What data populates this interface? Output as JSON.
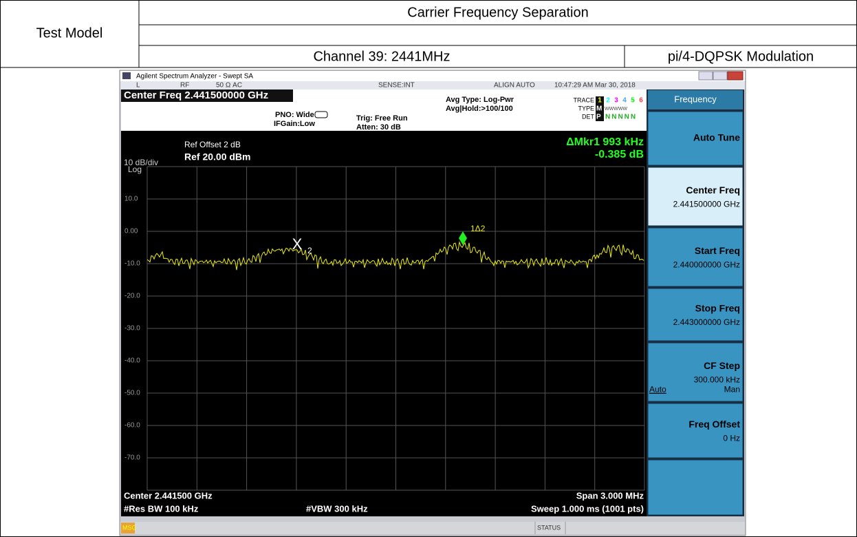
{
  "table": {
    "row_header": "Test Model",
    "title": "Carrier Frequency Separation",
    "channel": "Channel 39: 2441MHz",
    "modulation": "pi/4-DQPSK Modulation"
  },
  "analyzer": {
    "window_title": "Agilent Spectrum Analyzer - Swept SA",
    "status_bar": [
      "L",
      "RF",
      "50 Ω  AC",
      "SENSE:INT",
      "ALIGN AUTO",
      "10:47:29 AM Mar 30, 2018"
    ],
    "center_freq_header": "Center Freq 2.441500000 GHz",
    "pno": "PNO: Wide",
    "ifgain": "IFGain:Low",
    "trig": "Trig: Free Run",
    "atten": "Atten: 30 dB",
    "avg_type": "Avg Type: Log-Pwr",
    "avg_hold": "Avg|Hold:>100/100",
    "trace_label": "TRACE",
    "trace_numbers": [
      "1",
      "2",
      "3",
      "4",
      "5",
      "6"
    ],
    "type_label": "TYPE",
    "type_values": [
      "M",
      "WWWWW"
    ],
    "det_label": "DET",
    "det_values": [
      "P",
      "NNNNN"
    ],
    "ref_offset": "Ref Offset 2 dB",
    "ref_level": "Ref 20.00 dBm",
    "scale": "10 dB/div",
    "scale_type": "Log",
    "marker_readout": [
      "ΔMkr1 993 kHz",
      "-0.385 dB"
    ],
    "y_labels": [
      "10.0",
      "0.00",
      "-10.0",
      "-20.0",
      "-30.0",
      "-40.0",
      "-50.0",
      "-60.0",
      "-70.0"
    ],
    "marker_labels": {
      "x_marker": "X",
      "x_sub": "2",
      "delta": "1Δ2"
    },
    "footer": {
      "center": "Center 2.441500 GHz",
      "span": "Span 3.000 MHz",
      "rbw": "#Res BW 100 kHz",
      "vbw": "#VBW 300 kHz",
      "sweep": "Sweep  1.000 ms (1001 pts)"
    },
    "softkeys": {
      "menu": "Frequency",
      "items": [
        {
          "label": "Auto Tune"
        },
        {
          "label": "Center Freq",
          "value": "2.441500000 GHz"
        },
        {
          "label": "Start Freq",
          "value": "2.440000000 GHz"
        },
        {
          "label": "Stop Freq",
          "value": "2.443000000 GHz"
        },
        {
          "label": "CF Step",
          "value": "300.000 kHz",
          "options": [
            "Auto",
            "Man"
          ]
        },
        {
          "label": "Freq Offset",
          "value": "0 Hz"
        }
      ]
    },
    "msg": "MSG",
    "status": "STATUS"
  }
}
